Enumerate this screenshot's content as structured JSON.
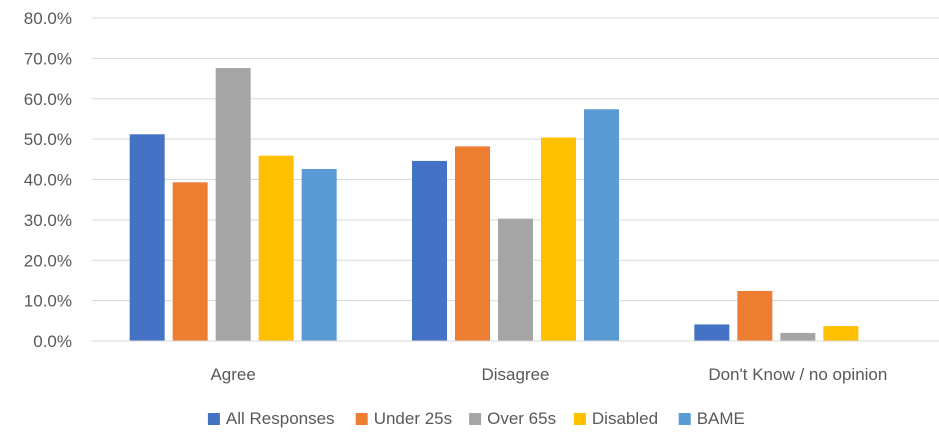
{
  "chart_data": {
    "type": "bar",
    "title": "",
    "xlabel": "",
    "ylabel": "",
    "categories": [
      "Agree",
      "Disagree",
      "Don't Know / no opinion"
    ],
    "ylim": [
      0,
      80
    ],
    "yticks": [
      "0.0%",
      "10.0%",
      "20.0%",
      "30.0%",
      "40.0%",
      "50.0%",
      "60.0%",
      "70.0%",
      "80.0%"
    ],
    "grid": true,
    "legend_position": "bottom",
    "series": [
      {
        "name": "All Responses",
        "color": "#4472C4",
        "values": [
          51.2,
          44.6,
          4.1
        ]
      },
      {
        "name": "Under 25s",
        "color": "#ED7D31",
        "values": [
          39.3,
          48.2,
          12.4
        ]
      },
      {
        "name": "Over 65s",
        "color": "#A5A5A5",
        "values": [
          67.6,
          30.3,
          2.0
        ]
      },
      {
        "name": "Disabled",
        "color": "#FFC000",
        "values": [
          45.9,
          50.4,
          3.7
        ]
      },
      {
        "name": "BAME",
        "color": "#5B9BD5",
        "values": [
          42.6,
          57.4,
          0
        ]
      }
    ]
  }
}
